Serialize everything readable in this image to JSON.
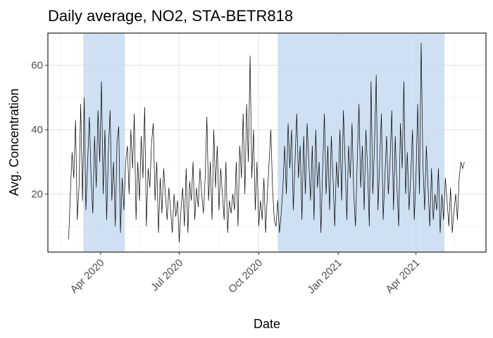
{
  "chart_data": {
    "type": "line",
    "title": "Daily average, NO2, STA-BETR818",
    "x_label": "Date",
    "y_label": "Avg. Concentration",
    "color": "#000000",
    "shade_color": "#c6dbef",
    "grid": true,
    "xlim": [
      "2020-01-31",
      "2021-06-21"
    ],
    "xticks": [
      {
        "value": "2020-04-01",
        "label": "Apr 2020"
      },
      {
        "value": "2020-07-01",
        "label": "Jul 2020"
      },
      {
        "value": "2020-10-01",
        "label": "Oct 2020"
      },
      {
        "value": "2021-01-01",
        "label": "Jan 2021"
      },
      {
        "value": "2021-04-01",
        "label": "Apr 2021"
      }
    ],
    "x_minor_ticks": [
      "2020-02-15",
      "2020-05-16",
      "2020-08-16",
      "2020-11-15",
      "2021-02-14",
      "2021-05-16"
    ],
    "ylim": [
      2,
      70
    ],
    "yticks": [
      20,
      40,
      60
    ],
    "y_minor_ticks": [
      10,
      30,
      50,
      70
    ],
    "shaded_periods": [
      {
        "start": "2020-03-12",
        "end": "2020-04-29"
      },
      {
        "start": "2020-10-23",
        "end": "2021-05-04"
      }
    ],
    "x": [
      "2020-02-24",
      "2020-02-26",
      "2020-02-28",
      "2020-03-01",
      "2020-03-03",
      "2020-03-05",
      "2020-03-07",
      "2020-03-09",
      "2020-03-11",
      "2020-03-13",
      "2020-03-15",
      "2020-03-17",
      "2020-03-19",
      "2020-03-21",
      "2020-03-23",
      "2020-03-25",
      "2020-03-27",
      "2020-03-29",
      "2020-03-31",
      "2020-04-02",
      "2020-04-04",
      "2020-04-06",
      "2020-04-08",
      "2020-04-10",
      "2020-04-12",
      "2020-04-14",
      "2020-04-16",
      "2020-04-18",
      "2020-04-20",
      "2020-04-22",
      "2020-04-24",
      "2020-04-26",
      "2020-04-28",
      "2020-04-30",
      "2020-05-02",
      "2020-05-04",
      "2020-05-06",
      "2020-05-08",
      "2020-05-10",
      "2020-05-12",
      "2020-05-14",
      "2020-05-16",
      "2020-05-18",
      "2020-05-20",
      "2020-05-22",
      "2020-05-24",
      "2020-05-26",
      "2020-05-28",
      "2020-05-30",
      "2020-06-01",
      "2020-06-03",
      "2020-06-05",
      "2020-06-07",
      "2020-06-09",
      "2020-06-11",
      "2020-06-13",
      "2020-06-15",
      "2020-06-17",
      "2020-06-19",
      "2020-06-21",
      "2020-06-23",
      "2020-06-25",
      "2020-06-27",
      "2020-06-29",
      "2020-07-01",
      "2020-07-03",
      "2020-07-05",
      "2020-07-07",
      "2020-07-09",
      "2020-07-11",
      "2020-07-13",
      "2020-07-15",
      "2020-07-17",
      "2020-07-19",
      "2020-07-21",
      "2020-07-23",
      "2020-07-25",
      "2020-07-27",
      "2020-07-29",
      "2020-07-31",
      "2020-08-02",
      "2020-08-04",
      "2020-08-06",
      "2020-08-08",
      "2020-08-10",
      "2020-08-12",
      "2020-08-14",
      "2020-08-16",
      "2020-08-18",
      "2020-08-20",
      "2020-08-22",
      "2020-08-24",
      "2020-08-26",
      "2020-08-28",
      "2020-08-30",
      "2020-09-01",
      "2020-09-03",
      "2020-09-05",
      "2020-09-07",
      "2020-09-09",
      "2020-09-11",
      "2020-09-13",
      "2020-09-15",
      "2020-09-17",
      "2020-09-19",
      "2020-09-21",
      "2020-09-23",
      "2020-09-25",
      "2020-09-27",
      "2020-09-29",
      "2020-10-01",
      "2020-10-03",
      "2020-10-05",
      "2020-10-07",
      "2020-10-09",
      "2020-10-11",
      "2020-10-13",
      "2020-10-15",
      "2020-10-17",
      "2020-10-19",
      "2020-10-21",
      "2020-10-23",
      "2020-10-25",
      "2020-10-27",
      "2020-10-29",
      "2020-10-31",
      "2020-11-02",
      "2020-11-04",
      "2020-11-06",
      "2020-11-08",
      "2020-11-10",
      "2020-11-12",
      "2020-11-14",
      "2020-11-16",
      "2020-11-18",
      "2020-11-20",
      "2020-11-22",
      "2020-11-24",
      "2020-11-26",
      "2020-11-28",
      "2020-11-30",
      "2020-12-02",
      "2020-12-04",
      "2020-12-06",
      "2020-12-08",
      "2020-12-10",
      "2020-12-12",
      "2020-12-14",
      "2020-12-16",
      "2020-12-18",
      "2020-12-20",
      "2020-12-22",
      "2020-12-24",
      "2020-12-26",
      "2020-12-28",
      "2020-12-30",
      "2021-01-01",
      "2021-01-03",
      "2021-01-05",
      "2021-01-07",
      "2021-01-09",
      "2021-01-11",
      "2021-01-13",
      "2021-01-15",
      "2021-01-17",
      "2021-01-19",
      "2021-01-21",
      "2021-01-23",
      "2021-01-25",
      "2021-01-27",
      "2021-01-29",
      "2021-01-31",
      "2021-02-02",
      "2021-02-04",
      "2021-02-06",
      "2021-02-08",
      "2021-02-10",
      "2021-02-12",
      "2021-02-14",
      "2021-02-16",
      "2021-02-18",
      "2021-02-20",
      "2021-02-22",
      "2021-02-24",
      "2021-02-26",
      "2021-02-28",
      "2021-03-02",
      "2021-03-04",
      "2021-03-06",
      "2021-03-08",
      "2021-03-10",
      "2021-03-12",
      "2021-03-14",
      "2021-03-16",
      "2021-03-18",
      "2021-03-20",
      "2021-03-22",
      "2021-03-24",
      "2021-03-26",
      "2021-03-28",
      "2021-03-30",
      "2021-04-01",
      "2021-04-03",
      "2021-04-05",
      "2021-04-07",
      "2021-04-09",
      "2021-04-11",
      "2021-04-13",
      "2021-04-15",
      "2021-04-17",
      "2021-04-19",
      "2021-04-21",
      "2021-04-23",
      "2021-04-25",
      "2021-04-27",
      "2021-04-29",
      "2021-05-01",
      "2021-05-03",
      "2021-05-05",
      "2021-05-07",
      "2021-05-09",
      "2021-05-11",
      "2021-05-13",
      "2021-05-15",
      "2021-05-17",
      "2021-05-19",
      "2021-05-21",
      "2021-05-23",
      "2021-05-25",
      "2021-05-27"
    ],
    "values": [
      6,
      20,
      33,
      25,
      43,
      12,
      22,
      48,
      18,
      50,
      15,
      30,
      44,
      25,
      14,
      38,
      22,
      46,
      30,
      55,
      20,
      40,
      12,
      33,
      46,
      18,
      30,
      10,
      36,
      41,
      8,
      25,
      15,
      30,
      35,
      20,
      40,
      28,
      45,
      12,
      30,
      18,
      38,
      25,
      47,
      10,
      28,
      22,
      36,
      42,
      18,
      30,
      8,
      25,
      14,
      28,
      20,
      12,
      22,
      15,
      8,
      20,
      13,
      18,
      5,
      15,
      22,
      10,
      28,
      8,
      24,
      18,
      30,
      12,
      22,
      16,
      28,
      20,
      14,
      25,
      44,
      18,
      30,
      12,
      40,
      22,
      35,
      15,
      28,
      20,
      12,
      30,
      8,
      18,
      14,
      20,
      15,
      30,
      10,
      35,
      25,
      45,
      20,
      48,
      30,
      63,
      25,
      40,
      15,
      30,
      10,
      18,
      12,
      25,
      8,
      20,
      30,
      40,
      22,
      12,
      10,
      18,
      8,
      14,
      22,
      35,
      20,
      42,
      28,
      40,
      15,
      30,
      45,
      25,
      35,
      12,
      38,
      20,
      42,
      30,
      18,
      35,
      12,
      40,
      22,
      30,
      8,
      28,
      45,
      20,
      35,
      15,
      38,
      25,
      10,
      30,
      22,
      40,
      18,
      46,
      30,
      12,
      35,
      25,
      42,
      20,
      10,
      30,
      48,
      22,
      35,
      15,
      40,
      28,
      10,
      55,
      20,
      35,
      57,
      15,
      30,
      45,
      12,
      25,
      38,
      20,
      30,
      46,
      15,
      38,
      22,
      10,
      42,
      28,
      55,
      20,
      33,
      15,
      26,
      40,
      12,
      25,
      48,
      20,
      67,
      30,
      15,
      35,
      22,
      10,
      28,
      12,
      20,
      15,
      28,
      8,
      20,
      12,
      25,
      18,
      10,
      22,
      8,
      15,
      20,
      12,
      25,
      30,
      28,
      30
    ]
  }
}
